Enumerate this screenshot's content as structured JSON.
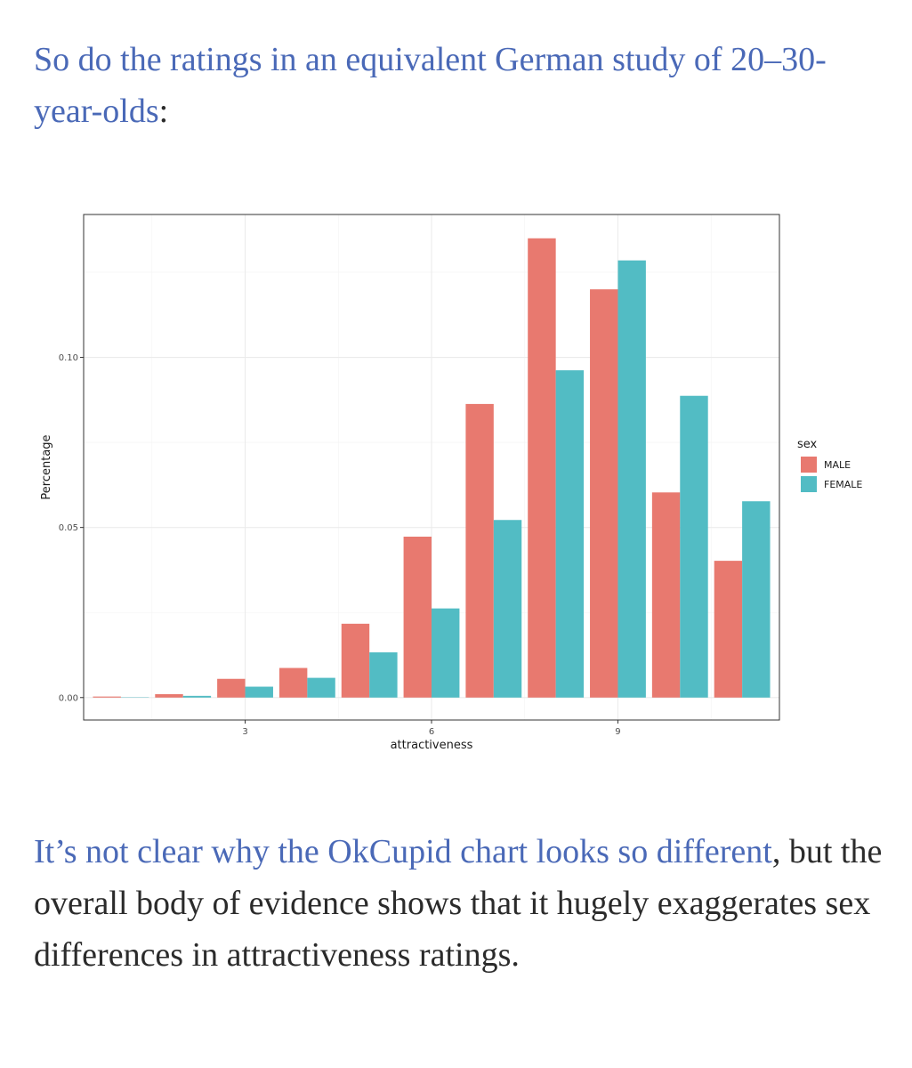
{
  "paragraph_top": {
    "link_text": "So do the ratings in an equivalent German study of 20–30-year-olds",
    "tail": ":"
  },
  "paragraph_bottom": {
    "link_text": "It’s not clear why the OkCupid chart looks so different",
    "tail": ", but the overall body of evidence shows that it hugely exaggerates sex differences in attractiveness ratings."
  },
  "colors": {
    "link": "#4a69b7",
    "male": "#e8796f",
    "female": "#52bcc4"
  },
  "chart_data": {
    "type": "bar",
    "title": "",
    "xlabel": "attractiveness",
    "ylabel": "Percentage",
    "x": [
      1,
      2,
      3,
      4,
      5,
      6,
      7,
      8,
      9,
      10,
      11
    ],
    "xticks": [
      "3",
      "6",
      "9"
    ],
    "xtick_values": [
      3,
      6,
      9
    ],
    "xlim": [
      0.4,
      11.6
    ],
    "yticks": [
      "0.00",
      "0.05",
      "0.10"
    ],
    "ytick_values": [
      0,
      0.05,
      0.1
    ],
    "ylim": [
      -0.0066,
      0.142
    ],
    "grid": true,
    "legend": {
      "title": "sex",
      "placement": "right"
    },
    "series": [
      {
        "name": "MALE",
        "color": "#e8796f",
        "values": [
          0.0003,
          0.001,
          0.0055,
          0.0087,
          0.0217,
          0.0473,
          0.0863,
          0.135,
          0.12,
          0.0603,
          0.0402
        ]
      },
      {
        "name": "FEMALE",
        "color": "#52bcc4",
        "values": [
          0.0001,
          0.0005,
          0.0032,
          0.0058,
          0.0133,
          0.0262,
          0.0522,
          0.0962,
          0.1285,
          0.0887,
          0.0577
        ]
      }
    ]
  }
}
